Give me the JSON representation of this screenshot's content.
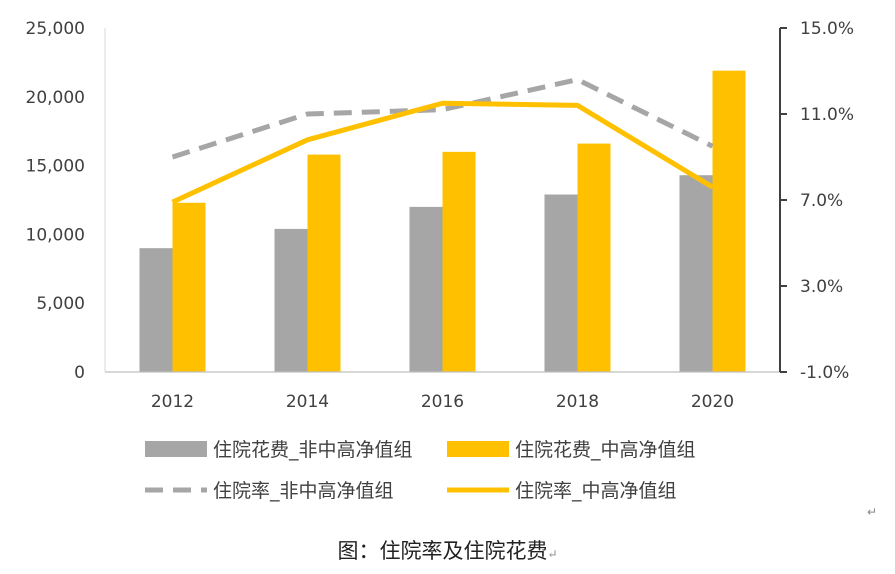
{
  "chart_data": {
    "type": "bar+line",
    "categories": [
      "2012",
      "2014",
      "2016",
      "2018",
      "2020"
    ],
    "bar_series": [
      {
        "name": "住院花费_非中高净值组",
        "color": "#a6a6a6",
        "values": [
          9000,
          10400,
          12000,
          12900,
          14300
        ]
      },
      {
        "name": "住院花费_中高净值组",
        "color": "#ffc000",
        "values": [
          12300,
          15800,
          16000,
          16600,
          21900
        ]
      }
    ],
    "line_series": [
      {
        "name": "住院率_非中高净值组",
        "color": "#a6a6a6",
        "style": "dashed",
        "values": [
          9.0,
          11.0,
          11.2,
          12.6,
          9.5
        ]
      },
      {
        "name": "住院率_中高净值组",
        "color": "#ffc000",
        "style": "solid",
        "values": [
          6.9,
          9.8,
          11.5,
          11.4,
          7.6
        ]
      }
    ],
    "y_left": {
      "min": 0,
      "max": 25000,
      "ticks": [
        "0",
        "5,000",
        "10,000",
        "15,000",
        "20,000",
        "25,000"
      ]
    },
    "y_right": {
      "min": -1.0,
      "max": 15.0,
      "ticks": [
        "-1.0%",
        "3.0%",
        "7.0%",
        "11.0%",
        "15.0%"
      ]
    },
    "legend_position": "bottom",
    "caption": "图：住院率及住院花费"
  },
  "marks": {
    "paragraph": "↵"
  }
}
